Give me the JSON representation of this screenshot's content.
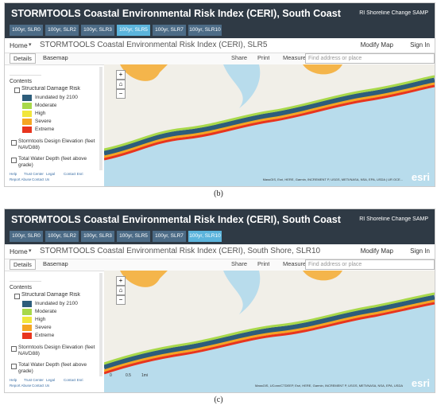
{
  "panels": [
    {
      "header": {
        "title": "STORMTOOLS Coastal Environmental Risk Index (CERI), South Coast",
        "link": "RI Shoreline Change SAMP"
      },
      "tabs": [
        {
          "label": "100yr, SLR0"
        },
        {
          "label": "100yr, SLR2"
        },
        {
          "label": "100yr, SLR3"
        },
        {
          "label": "100yr, SLR5",
          "active": true
        },
        {
          "label": "100yr, SLR7"
        },
        {
          "label": "100yr, SLR10"
        }
      ],
      "nav": {
        "home": "Home",
        "map_title": "STORMTOOLS Coastal Environmental Risk Index (CERI), SLR5",
        "modify": "Modify Map",
        "sign_in": "Sign In"
      },
      "toolbar": {
        "details": "Details",
        "basemap": "Basemap",
        "share": "Share",
        "print": "Print",
        "measure": "Measure",
        "search": "Find address or place"
      },
      "contents": {
        "heading": "Contents",
        "layer": "Structural Damage Risk",
        "legend": [
          {
            "label": "Inundated by 2100",
            "color": "#2d5d7b"
          },
          {
            "label": "Moderate",
            "color": "#a8d84a"
          },
          {
            "label": "High",
            "color": "#f1e63c"
          },
          {
            "label": "Severe",
            "color": "#f5a623"
          },
          {
            "label": "Extreme",
            "color": "#e8351e"
          }
        ],
        "layers": [
          "Stormtools Design Elevation (feet NAVD88)",
          "Total Water Depth (feet above grade)"
        ]
      },
      "footer": [
        "Help",
        "Trust Center",
        "Legal",
        "Contact Esri",
        "Report Abuse",
        "Contact Us"
      ],
      "attribution": "MassGIS, Esri, HERE, Garmin, INCREMENT P, USGS, METI/NASA, NSA, EPA, USDA | UR OCE...",
      "logo": "esri",
      "caption": "(b)"
    },
    {
      "header": {
        "title": "STORMTOOLS Coastal Environmental Risk Index (CERI), South Coast",
        "link": "RI Shoreline Change SAMP"
      },
      "tabs": [
        {
          "label": "100yr, SLR0"
        },
        {
          "label": "100yr, SLR2"
        },
        {
          "label": "100yr, SLR3"
        },
        {
          "label": "100yr, SLR5"
        },
        {
          "label": "100yr, SLR7"
        },
        {
          "label": "100yr, SLR10",
          "active": true
        }
      ],
      "nav": {
        "home": "Home",
        "map_title": "STORMTOOLS Coastal Environmental Risk Index (CERI), South Shore, SLR10",
        "modify": "Modify Map",
        "sign_in": "Sign In"
      },
      "toolbar": {
        "details": "Details",
        "basemap": "Basemap",
        "share": "Share",
        "print": "Print",
        "measure": "Measure",
        "search": "Find address or place"
      },
      "contents": {
        "heading": "Contents",
        "layer": "Structural Damage Risk",
        "legend": [
          {
            "label": "Inundated by 2100",
            "color": "#2d5d7b"
          },
          {
            "label": "Moderate",
            "color": "#a8d84a"
          },
          {
            "label": "High",
            "color": "#f1e63c"
          },
          {
            "label": "Severe",
            "color": "#f5a623"
          },
          {
            "label": "Extreme",
            "color": "#e8351e"
          }
        ],
        "layers": [
          "Stormtools Design Elevation (feet NAVD88)",
          "Total Water Depth (feet above grade)"
        ]
      },
      "footer": [
        "Help",
        "Trust Center",
        "Legal",
        "Contact Esri",
        "Report Abuse",
        "Contact Us"
      ],
      "scale": [
        "0",
        "0.5",
        "1mi"
      ],
      "attribution": "MassGIS, UConn/CTDEEP, Esri, HERE, Garmin, INCREMENT P, USGS, METI/NASA, NSA, EPA, USDA",
      "logo": "esri",
      "caption": "(c)"
    }
  ]
}
